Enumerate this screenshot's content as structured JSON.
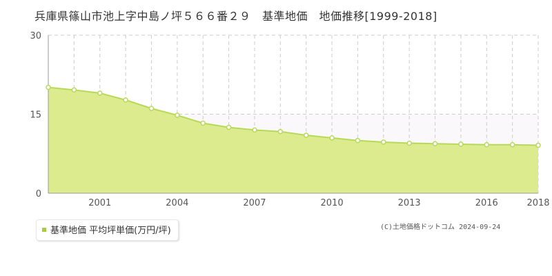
{
  "title": "兵庫県篠山市池上字中島ノ坪５６６番２９　基準地価　地価推移[1999-2018]",
  "legend": {
    "label": "基準地価 平均坪単価(万円/坪)"
  },
  "copyright": "(C)土地価格ドットコム 2024-09-24",
  "colors": {
    "fill": "#dbeb8e",
    "line": "#b7d95a",
    "marker_stroke": "#b7d95a",
    "marker_fill": "#ffffff",
    "legend_swatch": "#a8cc3c"
  },
  "chart_data": {
    "type": "area",
    "x": [
      1999,
      2000,
      2001,
      2002,
      2003,
      2004,
      2005,
      2006,
      2007,
      2008,
      2009,
      2010,
      2011,
      2012,
      2013,
      2014,
      2015,
      2016,
      2017,
      2018
    ],
    "series": [
      {
        "name": "基準地価 平均坪単価(万円/坪)",
        "values": [
          20.1,
          19.6,
          19.0,
          17.7,
          16.1,
          14.8,
          13.3,
          12.5,
          12.0,
          11.7,
          11.0,
          10.5,
          10.0,
          9.7,
          9.5,
          9.4,
          9.3,
          9.2,
          9.2,
          9.1
        ]
      }
    ],
    "ylim": [
      0,
      30
    ],
    "yticks": [
      0,
      15,
      30
    ],
    "xticks": [
      2001,
      2004,
      2007,
      2010,
      2013,
      2016,
      2018
    ],
    "xlim": [
      1999,
      2018
    ],
    "grid": true
  }
}
